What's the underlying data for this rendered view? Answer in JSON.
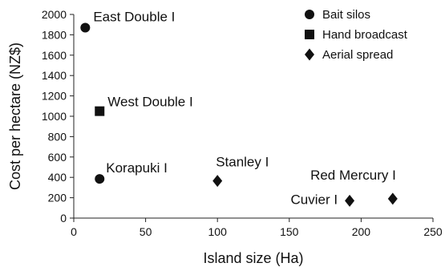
{
  "chart_data": {
    "type": "scatter",
    "xlabel": "Island size (Ha)",
    "ylabel": "Cost per hectare (NZ$)",
    "xlim": [
      0,
      250
    ],
    "ylim": [
      0,
      2000
    ],
    "xticks": [
      0,
      50,
      100,
      150,
      200,
      250
    ],
    "yticks": [
      0,
      200,
      400,
      600,
      800,
      1000,
      1200,
      1400,
      1600,
      1800,
      2000
    ],
    "grid": false,
    "legend_position": "top-right",
    "series": [
      {
        "name": "Bait silos",
        "marker": "circle",
        "points": [
          {
            "x": 8,
            "y": 1870,
            "label": "East Double I"
          },
          {
            "x": 18,
            "y": 385,
            "label": "Korapuki I"
          }
        ]
      },
      {
        "name": "Hand broadcast",
        "marker": "square",
        "points": [
          {
            "x": 18,
            "y": 1050,
            "label": "West Double I"
          }
        ]
      },
      {
        "name": "Aerial spread",
        "marker": "diamond",
        "points": [
          {
            "x": 100,
            "y": 365,
            "label": "Stanley I"
          },
          {
            "x": 192,
            "y": 170,
            "label": "Cuvier I"
          },
          {
            "x": 222,
            "y": 190,
            "label": "Red Mercury I"
          }
        ]
      }
    ],
    "marker_color": "#111111"
  }
}
